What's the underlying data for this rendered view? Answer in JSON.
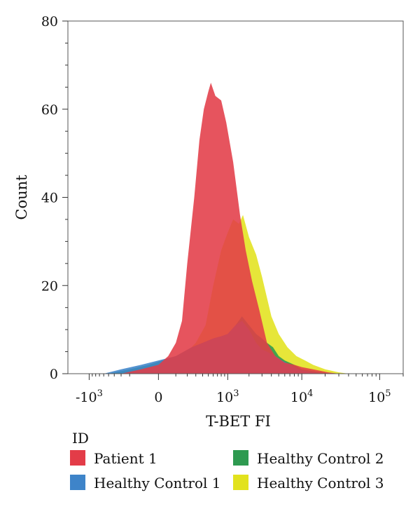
{
  "chart_data": {
    "type": "area",
    "title": "",
    "xlabel": "T-BET FI",
    "ylabel": "Count",
    "xscale": "biexponential",
    "xlim": [
      -2000,
      200000
    ],
    "ylim": [
      0,
      80
    ],
    "grid": false,
    "y_ticks": [
      {
        "value": 0,
        "label": "0"
      },
      {
        "value": 20,
        "label": "20"
      },
      {
        "value": 40,
        "label": "40"
      },
      {
        "value": 60,
        "label": "60"
      },
      {
        "value": 80,
        "label": "80"
      }
    ],
    "x_ticks": [
      {
        "value": -1000,
        "base": "-10",
        "exp": "3"
      },
      {
        "value": 0,
        "base": "0",
        "exp": ""
      },
      {
        "value": 1000,
        "base": "10",
        "exp": "3"
      },
      {
        "value": 10000,
        "base": "10",
        "exp": "4"
      },
      {
        "value": 100000,
        "base": "10",
        "exp": "5"
      }
    ],
    "legend": {
      "title": "ID",
      "placement": "bottom",
      "entries": [
        "Patient 1",
        "Healthy Control 2",
        "Healthy Control 1",
        "Healthy Control 3"
      ]
    },
    "series": [
      {
        "name": "Healthy Control 3",
        "color": "#e2e21e",
        "points": [
          [
            -2000,
            0
          ],
          [
            -400,
            0
          ],
          [
            -150,
            1
          ],
          [
            0,
            2
          ],
          [
            100,
            3
          ],
          [
            200,
            5
          ],
          [
            300,
            7
          ],
          [
            450,
            11
          ],
          [
            600,
            20
          ],
          [
            800,
            28
          ],
          [
            1000,
            32
          ],
          [
            1200,
            35
          ],
          [
            1450,
            34
          ],
          [
            1650,
            36
          ],
          [
            2000,
            31
          ],
          [
            2500,
            27
          ],
          [
            3000,
            22
          ],
          [
            4000,
            13
          ],
          [
            5000,
            9
          ],
          [
            6500,
            6
          ],
          [
            8500,
            4
          ],
          [
            11000,
            3
          ],
          [
            14000,
            2
          ],
          [
            20000,
            1
          ],
          [
            30000,
            0.3
          ],
          [
            40000,
            0
          ],
          [
            200000,
            0
          ]
        ]
      },
      {
        "name": "Healthy Control 2",
        "color": "#2e9a50",
        "points": [
          [
            -2000,
            0
          ],
          [
            -500,
            0
          ],
          [
            -200,
            1
          ],
          [
            -50,
            2
          ],
          [
            100,
            4
          ],
          [
            250,
            6
          ],
          [
            400,
            7
          ],
          [
            600,
            8
          ],
          [
            800,
            8.5
          ],
          [
            1000,
            9
          ],
          [
            1300,
            11
          ],
          [
            1600,
            13
          ],
          [
            2000,
            11
          ],
          [
            2500,
            9
          ],
          [
            3000,
            8
          ],
          [
            3500,
            7
          ],
          [
            4200,
            6
          ],
          [
            5000,
            4
          ],
          [
            6000,
            3
          ],
          [
            8000,
            2
          ],
          [
            10000,
            1
          ],
          [
            15000,
            0.5
          ],
          [
            25000,
            0
          ],
          [
            200000,
            0
          ]
        ]
      },
      {
        "name": "Healthy Control 1",
        "color": "#3e84c9",
        "points": [
          [
            -2000,
            0
          ],
          [
            -600,
            0
          ],
          [
            -300,
            1
          ],
          [
            -100,
            2
          ],
          [
            100,
            4
          ],
          [
            250,
            6
          ],
          [
            400,
            7
          ],
          [
            600,
            8
          ],
          [
            800,
            8.5
          ],
          [
            1000,
            9
          ],
          [
            1300,
            11
          ],
          [
            1600,
            12
          ],
          [
            2000,
            10
          ],
          [
            2500,
            7
          ],
          [
            3000,
            5.5
          ],
          [
            3500,
            5
          ],
          [
            4500,
            4
          ],
          [
            5500,
            3
          ],
          [
            7000,
            2
          ],
          [
            9000,
            1
          ],
          [
            12000,
            0.5
          ],
          [
            20000,
            0
          ],
          [
            200000,
            0
          ]
        ]
      },
      {
        "name": "Patient 1",
        "color": "#e33c48",
        "points": [
          [
            -2000,
            0
          ],
          [
            -300,
            0
          ],
          [
            -100,
            1
          ],
          [
            0,
            2
          ],
          [
            50,
            4
          ],
          [
            100,
            7
          ],
          [
            150,
            12
          ],
          [
            200,
            25
          ],
          [
            280,
            40
          ],
          [
            350,
            53
          ],
          [
            420,
            60
          ],
          [
            500,
            64
          ],
          [
            550,
            66
          ],
          [
            650,
            63
          ],
          [
            800,
            62
          ],
          [
            950,
            57
          ],
          [
            1200,
            48
          ],
          [
            1500,
            36
          ],
          [
            1800,
            28
          ],
          [
            2200,
            21
          ],
          [
            2800,
            14
          ],
          [
            3500,
            7
          ],
          [
            4500,
            4
          ],
          [
            6000,
            2.5
          ],
          [
            8000,
            2
          ],
          [
            10000,
            1.5
          ],
          [
            14000,
            1
          ],
          [
            22000,
            0.3
          ],
          [
            30000,
            0
          ],
          [
            200000,
            0
          ]
        ]
      }
    ]
  }
}
